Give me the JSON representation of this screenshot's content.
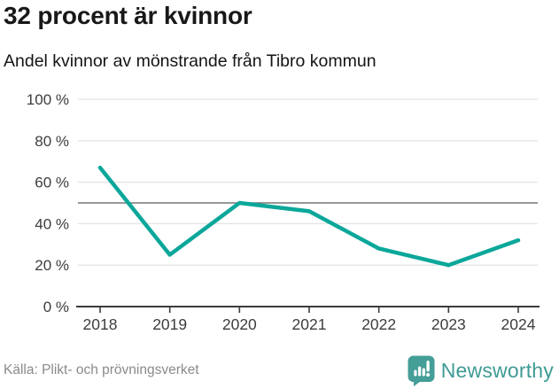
{
  "chart_data": {
    "type": "line",
    "title": "32 procent är kvinnor",
    "subtitle": "Andel kvinnor av mönstrande från Tibro kommun",
    "categories": [
      "2018",
      "2019",
      "2020",
      "2021",
      "2022",
      "2023",
      "2024"
    ],
    "values": [
      67,
      25,
      50,
      46,
      28,
      20,
      32
    ],
    "unit": "%",
    "ylim": [
      0,
      100
    ],
    "yticks": [
      0,
      20,
      40,
      60,
      80,
      100
    ],
    "ytick_suffix": " %",
    "reference_line": 50,
    "grid": true,
    "legend": false,
    "line_color": "#0ba79a",
    "reference_color": "#757575",
    "grid_color": "#e4e4e4",
    "axis_color": "#3c3c3c"
  },
  "footer": {
    "source": "Källa: Plikt- och prövningsverket",
    "brand": "Newsworthy"
  },
  "colors": {
    "accent": "#0ba79a",
    "brand": "#459e98",
    "text": "#181818",
    "muted_text": "#8a8a8a"
  }
}
